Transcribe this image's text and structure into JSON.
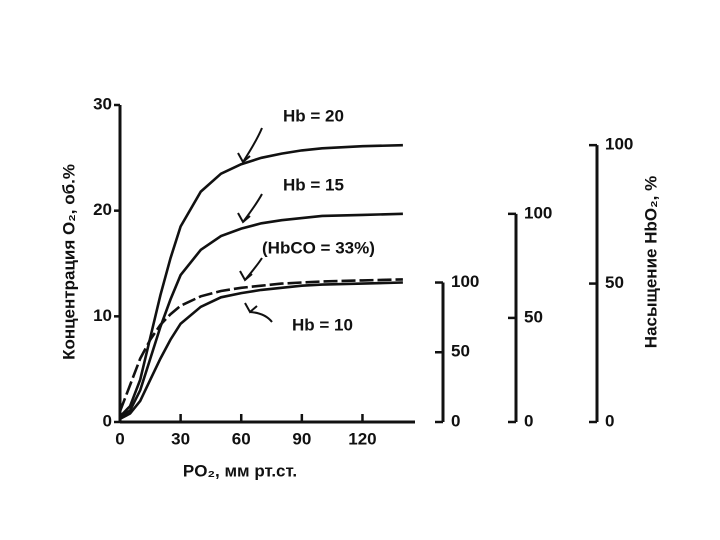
{
  "chart_data": {
    "type": "line",
    "x_label": "PO₂, мм рт.ст.",
    "y_label": "Концентрация O₂, об.%",
    "x": [
      0,
      5,
      10,
      15,
      20,
      25,
      30,
      40,
      50,
      60,
      70,
      80,
      90,
      100,
      120,
      140
    ],
    "xlim": [
      0,
      146
    ],
    "xticks": [
      0,
      30,
      60,
      90,
      120
    ],
    "ylim": [
      0,
      30
    ],
    "yticks": [
      0,
      10,
      20,
      30
    ],
    "series": [
      {
        "name": "Hb = 20",
        "color": "#111111",
        "dashed": false,
        "values": [
          0.5,
          1.5,
          4,
          8,
          12,
          15.5,
          18.5,
          21.8,
          23.5,
          24.4,
          25,
          25.4,
          25.7,
          25.9,
          26.1,
          26.2
        ]
      },
      {
        "name": "Hb = 15",
        "color": "#111111",
        "dashed": false,
        "values": [
          0.4,
          1.1,
          3,
          6,
          9,
          11.6,
          13.9,
          16.3,
          17.6,
          18.3,
          18.8,
          19.1,
          19.3,
          19.5,
          19.6,
          19.7
        ]
      },
      {
        "name": "(HbCO = 33%)",
        "color": "#111111",
        "dashed": true,
        "values": [
          1,
          3.5,
          6,
          7.8,
          9.2,
          10.2,
          11,
          11.9,
          12.4,
          12.7,
          12.9,
          13.1,
          13.2,
          13.3,
          13.4,
          13.5
        ]
      },
      {
        "name": "Hb = 10",
        "color": "#111111",
        "dashed": false,
        "values": [
          0.3,
          0.8,
          2,
          4,
          6,
          7.8,
          9.3,
          10.9,
          11.8,
          12.2,
          12.5,
          12.7,
          12.9,
          13,
          13.1,
          13.2
        ]
      }
    ],
    "saturation_axes": [
      {
        "ylim": [
          0,
          100
        ],
        "yticks": [
          0,
          50,
          100
        ]
      },
      {
        "ylim": [
          0,
          100
        ],
        "yticks": [
          0,
          50,
          100
        ]
      },
      {
        "ylim": [
          0,
          100
        ],
        "yticks": [
          0,
          50,
          100
        ]
      }
    ],
    "saturation_label": "Насыщение HbO₂, %"
  }
}
